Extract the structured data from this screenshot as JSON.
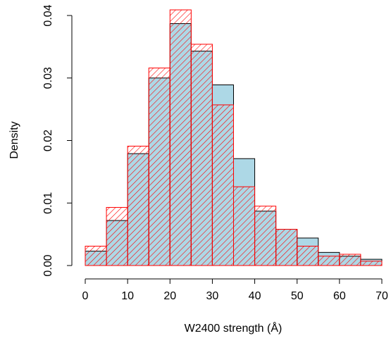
{
  "chart_data": {
    "type": "bar",
    "xlabel": "W2400 strength (Å)",
    "ylabel": "Density",
    "xlim": [
      0,
      70
    ],
    "ylim": [
      0,
      0.04
    ],
    "x_ticks": [
      0,
      10,
      20,
      30,
      40,
      50,
      60,
      70
    ],
    "x_tick_labels": [
      "0",
      "10",
      "20",
      "30",
      "40",
      "50",
      "60",
      "70"
    ],
    "y_ticks": [
      0.0,
      0.01,
      0.02,
      0.03,
      0.04
    ],
    "y_tick_labels": [
      "0.00",
      "0.01",
      "0.02",
      "0.03",
      "0.04"
    ],
    "bin_edges": [
      0,
      5,
      10,
      15,
      20,
      25,
      30,
      35,
      40,
      45,
      50,
      55,
      60,
      65,
      70
    ],
    "series": [
      {
        "style": "solid",
        "fill": "#add8e6",
        "stroke": "#000000",
        "values": [
          0.0023,
          0.0072,
          0.0179,
          0.03,
          0.0387,
          0.0343,
          0.0289,
          0.0171,
          0.0087,
          0.0058,
          0.0044,
          0.0021,
          0.0015,
          0.001
        ]
      },
      {
        "style": "hatched",
        "fill": "none",
        "stroke": "#ff0000",
        "values": [
          0.0031,
          0.0093,
          0.0191,
          0.0316,
          0.0409,
          0.0354,
          0.0257,
          0.0126,
          0.0095,
          0.0058,
          0.0031,
          0.0015,
          0.0018,
          0.0007
        ]
      }
    ],
    "grid": false,
    "legend": "none"
  }
}
